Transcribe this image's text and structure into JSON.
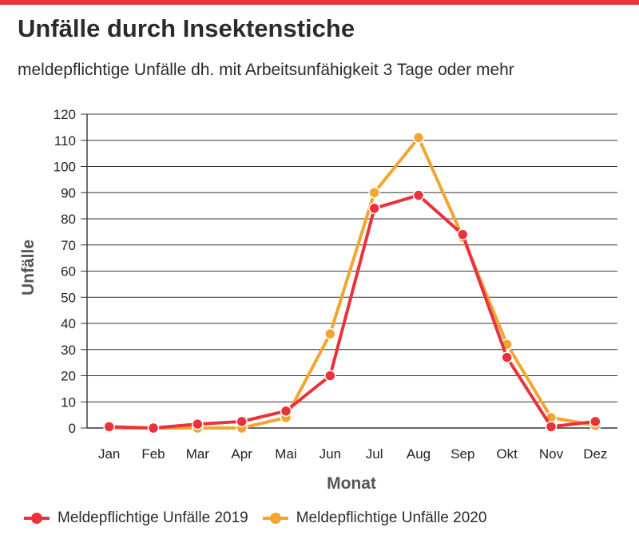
{
  "header": {
    "title": "Unfälle durch Insektenstiche",
    "subtitle": "meldepflichtige Unfälle dh. mit Arbeitsunfähigkeit 3 Tage oder mehr",
    "accent_color": "#e8323c"
  },
  "chart_data": {
    "type": "line",
    "title": "Unfälle durch Insektenstiche",
    "subtitle": "meldepflichtige Unfälle dh. mit Arbeitsunfähigkeit 3 Tage oder mehr",
    "xlabel": "Monat",
    "ylabel": "Unfälle",
    "categories": [
      "Jan",
      "Feb",
      "Mar",
      "Apr",
      "Mai",
      "Jun",
      "Jul",
      "Aug",
      "Sep",
      "Okt",
      "Nov",
      "Dez"
    ],
    "ylim": [
      0,
      120
    ],
    "yticks": [
      0,
      10,
      20,
      30,
      40,
      50,
      60,
      70,
      80,
      90,
      100,
      110,
      120
    ],
    "grid": "horizontal",
    "legend_position": "bottom",
    "series": [
      {
        "name": "Meldepflichtige Unfälle 2019",
        "color": "#e8323c",
        "values": [
          0.5,
          0,
          1.5,
          2.5,
          6.5,
          20,
          84,
          89,
          74,
          27,
          0.5,
          2.5
        ]
      },
      {
        "name": "Meldepflichtige Unfälle 2020",
        "color": "#f2a531",
        "values": [
          0,
          0,
          0,
          0,
          4,
          36,
          90,
          111,
          73,
          32,
          4,
          1
        ]
      }
    ]
  }
}
